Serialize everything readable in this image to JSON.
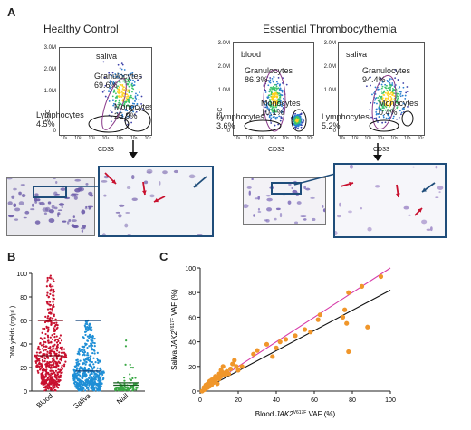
{
  "panel_a": {
    "letter": "A",
    "healthy_title": "Healthy Control",
    "et_title": "Essential Thrombocythemia"
  },
  "flow_plots": [
    {
      "sample": "saliva",
      "ylabel": "SSC",
      "xlabel": "CD33",
      "yticks": [
        "3.0M",
        "2.0M",
        "1.0M",
        "0"
      ],
      "xticks": [
        "10¹",
        "10²",
        "10³",
        "10⁴",
        "10⁵",
        "10⁶",
        "10⁷"
      ],
      "granulocytes": "Granulocytes\n69.6%",
      "monocytes": "Monocytes\n25.9%",
      "lymphocytes": "Lymphocytes\n4.5%"
    },
    {
      "sample": "blood",
      "ylabel": "SSC",
      "xlabel": "CD33",
      "yticks": [
        "3.0M",
        "2.0M",
        "1.0M",
        "0"
      ],
      "xticks": [
        "10¹",
        "10²",
        "10³",
        "10⁴",
        "10⁵",
        "10⁶",
        "10⁷"
      ],
      "granulocytes": "Granulocytes\n86.3%",
      "monocytes": "Monocytes\n10.1%",
      "lymphocytes": "Lymphocytes\n3.6%"
    },
    {
      "sample": "saliva",
      "ylabel": "SSC",
      "xlabel": "CD33",
      "yticks": [
        "3.0M",
        "2.0M",
        "1.0M",
        "0"
      ],
      "xticks": [
        "10¹",
        "10²",
        "10³",
        "10⁴",
        "10⁵",
        "10⁶",
        "10⁷"
      ],
      "granulocytes": "Granulocytes\n94.4%",
      "monocytes": "Monocytes\n0.4%",
      "lymphocytes": "Lymphocytes\n5.2%"
    }
  ],
  "chart_data": [
    {
      "type": "scatter",
      "panel": "B",
      "ylabel": "DNA yields (ng/μL)",
      "ylim": [
        0,
        100
      ],
      "yticks": [
        0,
        20,
        40,
        60,
        80,
        100
      ],
      "categories": [
        "Blood",
        "Saliva",
        "Nail"
      ],
      "series": [
        {
          "name": "Blood",
          "color": "#c8102e",
          "n": 520,
          "mean": 30,
          "sd_line": 60,
          "max": 98,
          "median": 28
        },
        {
          "name": "Saliva",
          "color": "#1f8fd6",
          "n": 520,
          "mean": 17,
          "sd_line": 60,
          "max": 60,
          "median": 14
        },
        {
          "name": "Nail",
          "color": "#3aa845",
          "n": 90,
          "mean": 5,
          "sd_line": 7,
          "max": 43,
          "median": 3
        }
      ]
    },
    {
      "type": "scatter",
      "panel": "C",
      "xlabel_pre": "Blood ",
      "xlabel_italic": "JAK2",
      "xlabel_sup": "V617F",
      "xlabel_post": " VAF (%)",
      "ylabel_pre": "Saliva ",
      "ylabel_italic": "JAK2",
      "ylabel_sup": "V617F",
      "ylabel_post": " VAF (%)",
      "xlim": [
        0,
        100
      ],
      "ylim": [
        0,
        100
      ],
      "xticks": [
        0,
        20,
        40,
        60,
        80,
        100
      ],
      "yticks": [
        0,
        20,
        40,
        60,
        80,
        100
      ],
      "point_color": "#f0962a",
      "x": [
        1,
        2,
        2,
        3,
        3,
        4,
        4,
        5,
        5,
        6,
        6,
        7,
        7,
        8,
        8,
        9,
        9,
        10,
        10,
        11,
        11,
        12,
        12,
        13,
        14,
        15,
        16,
        17,
        18,
        19,
        20,
        22,
        28,
        30,
        35,
        38,
        40,
        42,
        45,
        50,
        55,
        58,
        62,
        63,
        75,
        76,
        77,
        78,
        78,
        85,
        88,
        95
      ],
      "y": [
        0,
        1,
        3,
        2,
        5,
        3,
        6,
        4,
        8,
        5,
        9,
        7,
        10,
        8,
        12,
        6,
        11,
        14,
        10,
        12,
        17,
        15,
        20,
        13,
        16,
        14,
        18,
        22,
        25,
        20,
        17,
        20,
        30,
        33,
        38,
        28,
        35,
        40,
        42,
        45,
        50,
        48,
        58,
        62,
        60,
        66,
        55,
        80,
        32,
        85,
        52,
        93
      ],
      "lines": [
        {
          "color": "#d63aa8",
          "x": [
            0,
            100
          ],
          "y": [
            -2,
            100
          ]
        },
        {
          "color": "#111111",
          "x": [
            0,
            100
          ],
          "y": [
            -4,
            82
          ]
        }
      ]
    }
  ]
}
